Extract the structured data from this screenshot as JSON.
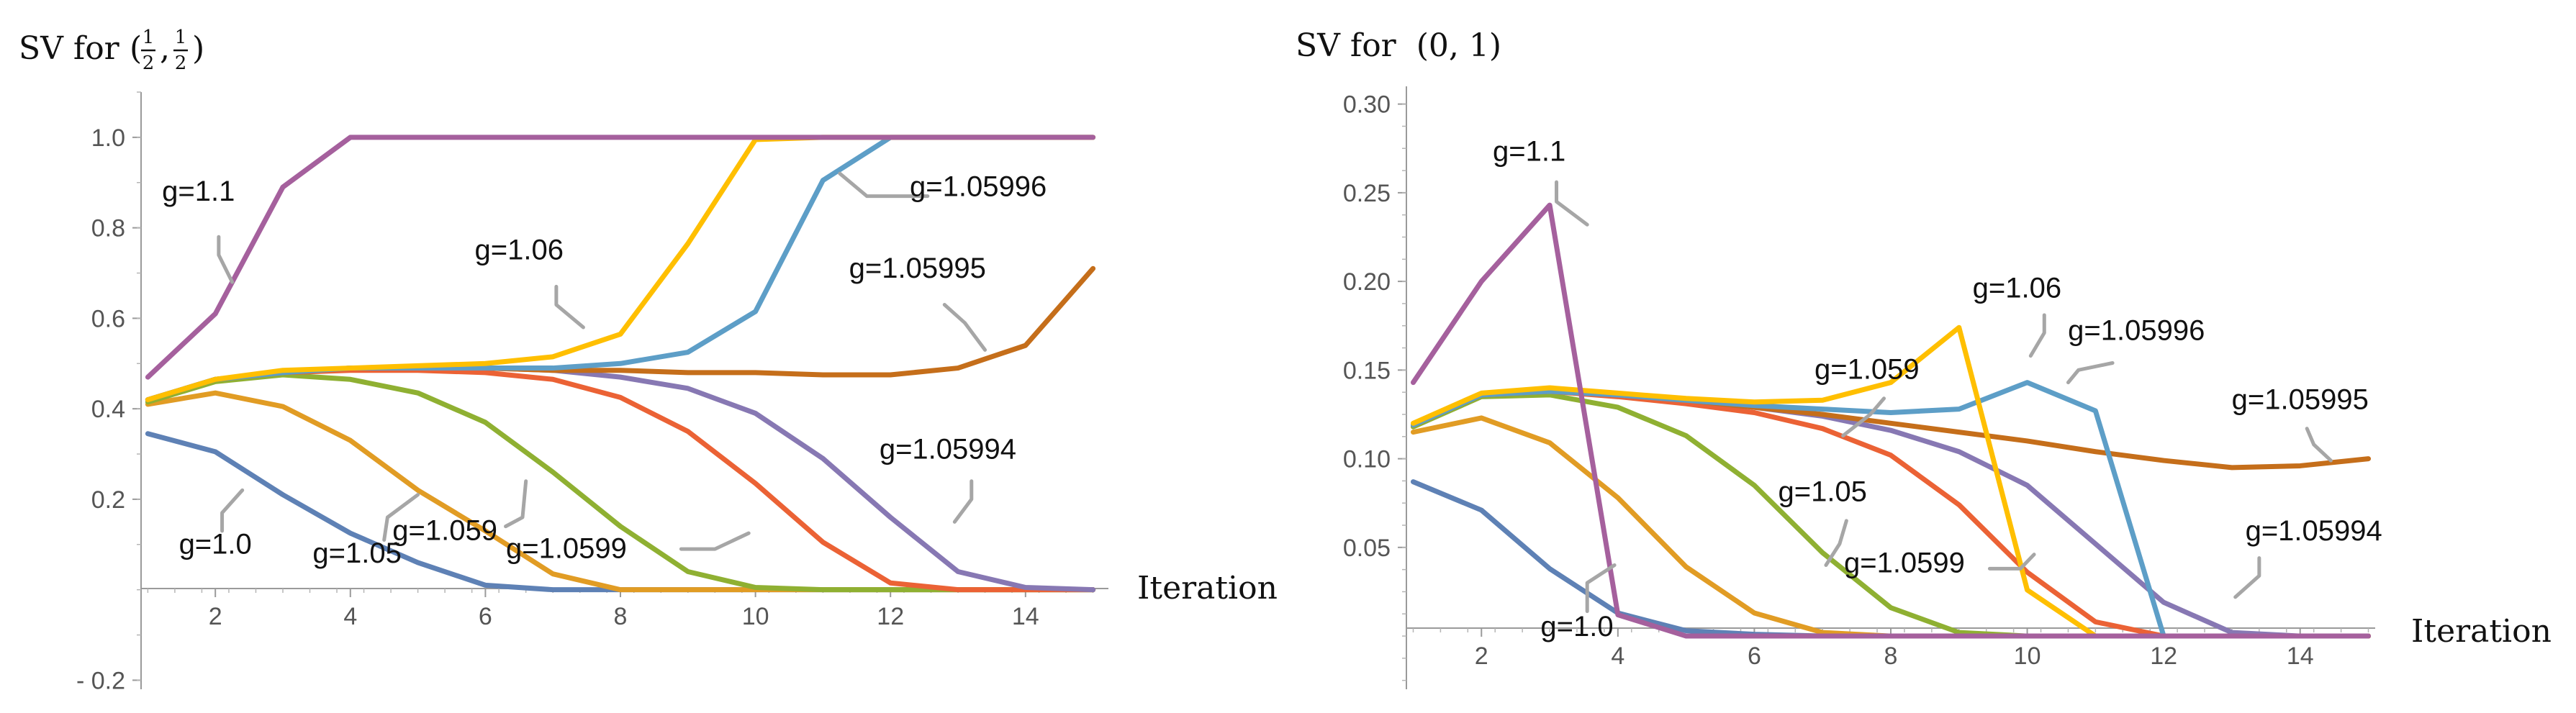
{
  "colors": {
    "g=1.0": "#5E81B5",
    "g=1.05": "#E19C24",
    "g=1.059": "#8FB032",
    "g=1.0599": "#EB6235",
    "g=1.05994": "#8778B3",
    "g=1.05995": "#C56E1A",
    "g=1.05996": "#5D9EC7",
    "g=1.06": "#FFBF00",
    "g=1.1": "#A5609D"
  },
  "chart_data": [
    {
      "type": "line",
      "title_prefix": "SV for",
      "title_math_left": "(",
      "title_fraction_num": "1",
      "title_fraction_den": "2",
      "title_math_sep": ",",
      "title_math_right": ")",
      "xlabel": "Iteration",
      "ylabel": "",
      "x": [
        1,
        2,
        3,
        4,
        5,
        6,
        7,
        8,
        9,
        10,
        11,
        12,
        13,
        14,
        15
      ],
      "xlim": [
        0.9,
        15.1
      ],
      "ylim": [
        -0.22,
        1.1
      ],
      "xticks": [
        2,
        4,
        6,
        8,
        10,
        12,
        14
      ],
      "xtick_labels": [
        "2",
        "4",
        "6",
        "8",
        "10",
        "12",
        "14"
      ],
      "yticks": [
        -0.2,
        0.2,
        0.4,
        0.6,
        0.8,
        1.0
      ],
      "ytick_labels": [
        "- 0.2",
        "0.2",
        "0.4",
        "0.6",
        "0.8",
        "1.0"
      ],
      "series": [
        {
          "name": "g=1.0",
          "label": "g=1.0",
          "values": [
            0.345,
            0.305,
            0.21,
            0.125,
            0.06,
            0.01,
            0,
            0,
            0,
            0,
            0,
            0,
            0,
            0,
            0
          ]
        },
        {
          "name": "g=1.05",
          "label": "g=1.05",
          "values": [
            0.41,
            0.435,
            0.405,
            0.33,
            0.22,
            0.13,
            0.035,
            0,
            0,
            0,
            0,
            0,
            0,
            0,
            0
          ]
        },
        {
          "name": "g=1.059",
          "label": "g=1.059",
          "values": [
            0.415,
            0.46,
            0.475,
            0.465,
            0.435,
            0.37,
            0.26,
            0.14,
            0.04,
            0.005,
            0,
            0,
            0,
            0,
            0
          ]
        },
        {
          "name": "g=1.0599",
          "label": "g=1.0599",
          "values": [
            0.42,
            0.465,
            0.48,
            0.485,
            0.485,
            0.48,
            0.465,
            0.425,
            0.35,
            0.235,
            0.105,
            0.015,
            0,
            0,
            0
          ]
        },
        {
          "name": "g=1.05994",
          "label": "g=1.05994",
          "values": [
            0.42,
            0.465,
            0.48,
            0.49,
            0.49,
            0.49,
            0.485,
            0.47,
            0.445,
            0.39,
            0.29,
            0.16,
            0.04,
            0.005,
            0
          ]
        },
        {
          "name": "g=1.05995",
          "label": "g=1.05995",
          "values": [
            0.42,
            0.465,
            0.48,
            0.49,
            0.49,
            0.49,
            0.485,
            0.485,
            0.48,
            0.48,
            0.475,
            0.475,
            0.49,
            0.54,
            0.71
          ]
        },
        {
          "name": "g=1.05996",
          "label": "g=1.05996",
          "values": [
            0.42,
            0.465,
            0.48,
            0.49,
            0.49,
            0.49,
            0.49,
            0.5,
            0.525,
            0.615,
            0.905,
            1.0,
            1.0,
            1.0,
            1.0
          ]
        },
        {
          "name": "g=1.06",
          "label": "g=1.06",
          "values": [
            0.42,
            0.465,
            0.485,
            0.49,
            0.495,
            0.5,
            0.515,
            0.565,
            0.765,
            0.995,
            1.0,
            1.0,
            1.0,
            1.0,
            1.0
          ]
        },
        {
          "name": "g=1.1",
          "label": "g=1.1",
          "values": [
            0.47,
            0.61,
            0.89,
            1.0,
            1.0,
            1.0,
            1.0,
            1.0,
            1.0,
            1.0,
            1.0,
            1.0,
            1.0,
            1.0,
            1.0
          ]
        }
      ]
    },
    {
      "type": "line",
      "title_prefix": "SV for",
      "title_math": "(0, 1)",
      "xlabel": "Iteration",
      "ylabel": "",
      "x": [
        1,
        2,
        3,
        4,
        5,
        6,
        7,
        8,
        9,
        10,
        11,
        12,
        13,
        14,
        15
      ],
      "xlim": [
        0.9,
        15.1
      ],
      "ylim": [
        -0.03,
        0.31
      ],
      "xticks": [
        2,
        4,
        6,
        8,
        10,
        12,
        14
      ],
      "xtick_labels": [
        "2",
        "4",
        "6",
        "8",
        "10",
        "12",
        "14"
      ],
      "yticks": [
        0.05,
        0.1,
        0.15,
        0.2,
        0.25,
        0.3
      ],
      "ytick_labels": [
        "0.05",
        "0.10",
        "0.15",
        "0.20",
        "0.25",
        "0.30"
      ],
      "series": [
        {
          "name": "g=1.0",
          "label": "g=1.0",
          "values": [
            0.087,
            0.071,
            0.038,
            0.013,
            0.003,
            0.001,
            0,
            0,
            0,
            0,
            0,
            0,
            0,
            0,
            0
          ]
        },
        {
          "name": "g=1.05",
          "label": "g=1.05",
          "values": [
            0.115,
            0.123,
            0.109,
            0.078,
            0.039,
            0.013,
            0.002,
            0,
            0,
            0,
            0,
            0,
            0,
            0,
            0
          ]
        },
        {
          "name": "g=1.059",
          "label": "g=1.059",
          "values": [
            0.118,
            0.135,
            0.136,
            0.129,
            0.113,
            0.085,
            0.047,
            0.016,
            0.002,
            0,
            0,
            0,
            0,
            0,
            0
          ]
        },
        {
          "name": "g=1.0599",
          "label": "g=1.0599",
          "values": [
            0.119,
            0.136,
            0.138,
            0.135,
            0.131,
            0.126,
            0.117,
            0.102,
            0.074,
            0.036,
            0.008,
            0,
            0,
            0,
            0
          ]
        },
        {
          "name": "g=1.05994",
          "label": "g=1.05994",
          "values": [
            0.119,
            0.136,
            0.138,
            0.136,
            0.133,
            0.129,
            0.124,
            0.116,
            0.104,
            0.085,
            0.052,
            0.019,
            0.002,
            0,
            0
          ]
        },
        {
          "name": "g=1.05995",
          "label": "g=1.05995",
          "values": [
            0.119,
            0.136,
            0.138,
            0.136,
            0.133,
            0.129,
            0.125,
            0.12,
            0.115,
            0.11,
            0.104,
            0.099,
            0.095,
            0.096,
            0.1
          ]
        },
        {
          "name": "g=1.05996",
          "label": "g=1.05996",
          "values": [
            0.119,
            0.136,
            0.138,
            0.136,
            0.133,
            0.13,
            0.128,
            0.126,
            0.128,
            0.143,
            0.127,
            0,
            0,
            0,
            0
          ]
        },
        {
          "name": "g=1.06",
          "label": "g=1.06",
          "values": [
            0.12,
            0.137,
            0.14,
            0.137,
            0.134,
            0.132,
            0.133,
            0.143,
            0.174,
            0.026,
            0,
            0,
            0,
            0,
            0
          ]
        },
        {
          "name": "g=1.1",
          "label": "g=1.1",
          "values": [
            0.143,
            0.2,
            0.243,
            0.012,
            0,
            0,
            0,
            0,
            0,
            0,
            0,
            0,
            0,
            0,
            0
          ]
        }
      ]
    }
  ]
}
